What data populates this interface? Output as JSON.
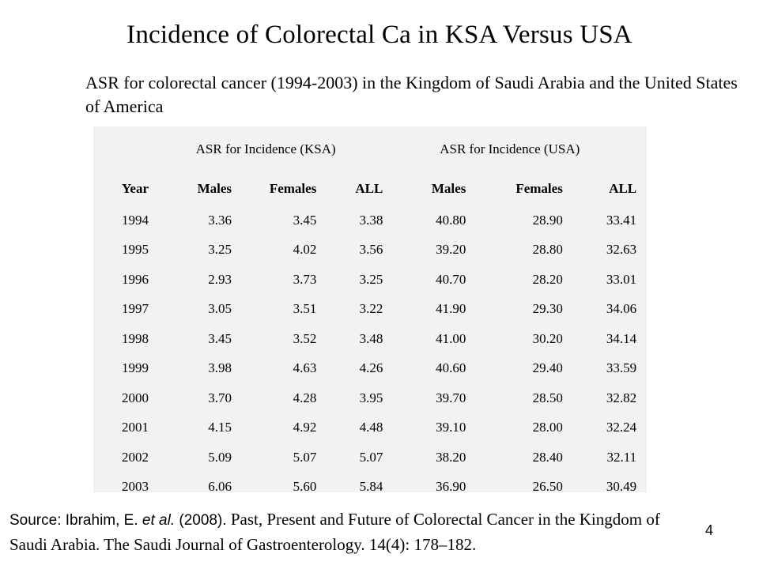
{
  "title": "Incidence of Colorectal Ca in KSA Versus USA",
  "subtitle": "ASR for colorectal cancer (1994-2003) in the Kingdom of Saudi Arabia and the United States of America",
  "chart_data": {
    "type": "table",
    "group_headers": [
      "ASR for Incidence (KSA)",
      "ASR for Incidence (USA)"
    ],
    "columns": [
      "Year",
      "Males",
      "Females",
      "ALL",
      "Males",
      "Females",
      "ALL"
    ],
    "rows": [
      [
        "1994",
        "3.36",
        "3.45",
        "3.38",
        "40.80",
        "28.90",
        "33.41"
      ],
      [
        "1995",
        "3.25",
        "4.02",
        "3.56",
        "39.20",
        "28.80",
        "32.63"
      ],
      [
        "1996",
        "2.93",
        "3.73",
        "3.25",
        "40.70",
        "28.20",
        "33.01"
      ],
      [
        "1997",
        "3.05",
        "3.51",
        "3.22",
        "41.90",
        "29.30",
        "34.06"
      ],
      [
        "1998",
        "3.45",
        "3.52",
        "3.48",
        "41.00",
        "30.20",
        "34.14"
      ],
      [
        "1999",
        "3.98",
        "4.63",
        "4.26",
        "40.60",
        "29.40",
        "33.59"
      ],
      [
        "2000",
        "3.70",
        "4.28",
        "3.95",
        "39.70",
        "28.50",
        "32.82"
      ],
      [
        "2001",
        "4.15",
        "4.92",
        "4.48",
        "39.10",
        "28.00",
        "32.24"
      ],
      [
        "2002",
        "5.09",
        "5.07",
        "5.07",
        "38.20",
        "28.40",
        "32.11"
      ],
      [
        "2003",
        "6.06",
        "5.60",
        "5.84",
        "36.90",
        "26.50",
        "30.49"
      ]
    ]
  },
  "source": {
    "prefix": "Source: Ibrahim, E. ",
    "et_al": "et al.",
    "year": " (2008). ",
    "citation": "Past, Present and Future of Colorectal Cancer in the Kingdom of Saudi Arabia. The Saudi Journal of Gastroenterology. 14(4): 178–182."
  },
  "page_number": "4",
  "colors": {
    "table_background": "#f2f2f2",
    "text": "#000000",
    "slide_background": "#ffffff"
  }
}
